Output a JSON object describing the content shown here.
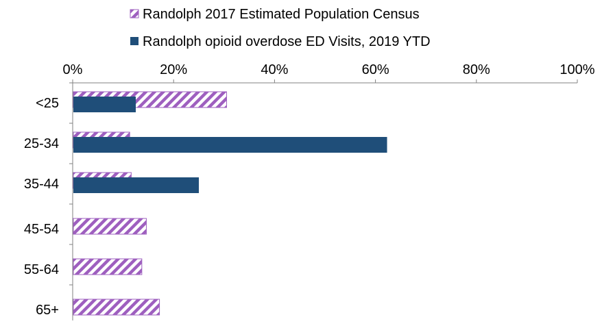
{
  "chart_data": {
    "type": "bar",
    "orientation": "horizontal",
    "categories": [
      "<25",
      "25-34",
      "35-44",
      "45-54",
      "55-64",
      "65+"
    ],
    "series": [
      {
        "name": "Randolph 2017 Estimated Population Census",
        "values": [
          30.5,
          11.3,
          11.6,
          14.6,
          13.7,
          17.2
        ],
        "color": "#9E5FBF",
        "pattern": "diagonal-hatch"
      },
      {
        "name": "Randolph opioid overdose ED Visits, 2019 YTD",
        "values": [
          12.5,
          62.3,
          25.0,
          0,
          0,
          0
        ],
        "color": "#1F4E79",
        "pattern": "solid"
      }
    ],
    "xlim": [
      0,
      100
    ],
    "xticks": [
      "0%",
      "20%",
      "40%",
      "60%",
      "80%",
      "100%"
    ],
    "xtick_values": [
      0,
      20,
      40,
      60,
      80,
      100
    ],
    "x_axis_position": "top",
    "grid": false,
    "legend_position": "top",
    "title": "",
    "xlabel": "",
    "ylabel": ""
  }
}
